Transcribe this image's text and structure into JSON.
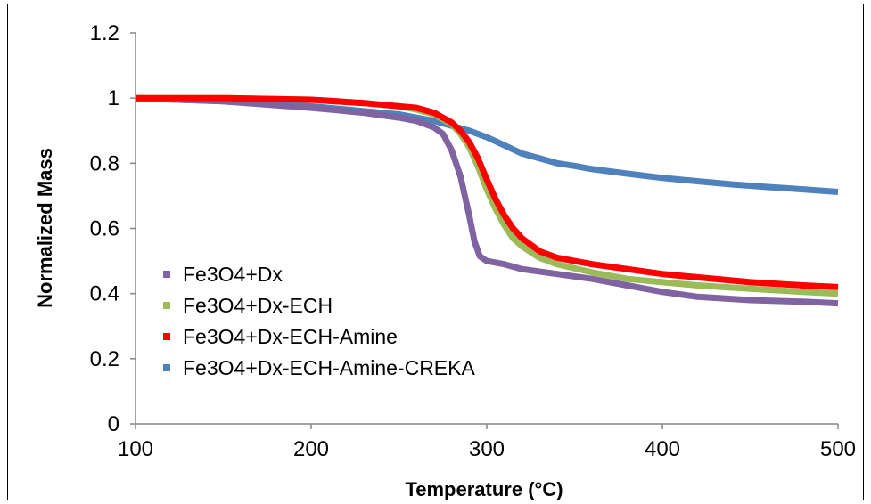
{
  "chart_data": {
    "type": "line",
    "xlabel": "Temperature (°C)",
    "ylabel": "Normalized Mass",
    "xlim": [
      100,
      500
    ],
    "ylim": [
      0,
      1.2
    ],
    "xticks": [
      100,
      200,
      300,
      400,
      500
    ],
    "yticks": [
      0,
      0.2,
      0.4,
      0.6,
      0.8,
      1,
      1.2
    ],
    "xtick_labels": [
      "100",
      "200",
      "300",
      "400",
      "500"
    ],
    "ytick_labels": [
      "0",
      "0.2",
      "0.4",
      "0.6",
      "0.8",
      "1",
      "1.2"
    ],
    "grid": false,
    "legend_position": "bottom-left",
    "series": [
      {
        "name": "Fe3O4+Dx",
        "color": "#8064A2",
        "x": [
          100,
          150,
          200,
          230,
          250,
          260,
          270,
          275,
          280,
          285,
          290,
          293,
          296,
          300,
          310,
          320,
          340,
          360,
          380,
          400,
          420,
          450,
          480,
          500
        ],
        "y": [
          1.0,
          0.99,
          0.97,
          0.955,
          0.94,
          0.93,
          0.91,
          0.89,
          0.84,
          0.76,
          0.64,
          0.56,
          0.515,
          0.5,
          0.49,
          0.475,
          0.46,
          0.445,
          0.425,
          0.405,
          0.39,
          0.38,
          0.375,
          0.37
        ]
      },
      {
        "name": "Fe3O4+Dx-ECH",
        "color": "#9BBB59",
        "x": [
          100,
          150,
          200,
          230,
          250,
          260,
          270,
          280,
          285,
          290,
          295,
          300,
          305,
          310,
          315,
          320,
          330,
          340,
          360,
          380,
          400,
          420,
          450,
          480,
          500
        ],
        "y": [
          1.0,
          1.0,
          0.995,
          0.985,
          0.975,
          0.965,
          0.95,
          0.92,
          0.89,
          0.85,
          0.79,
          0.72,
          0.66,
          0.61,
          0.57,
          0.545,
          0.51,
          0.49,
          0.465,
          0.445,
          0.435,
          0.425,
          0.415,
          0.405,
          0.4
        ]
      },
      {
        "name": "Fe3O4+Dx-ECH-Amine",
        "color": "#FF0000",
        "x": [
          100,
          150,
          200,
          230,
          250,
          260,
          270,
          280,
          285,
          290,
          295,
          300,
          305,
          310,
          315,
          320,
          330,
          340,
          360,
          380,
          400,
          420,
          450,
          480,
          500
        ],
        "y": [
          1.0,
          1.0,
          0.995,
          0.985,
          0.975,
          0.97,
          0.955,
          0.925,
          0.9,
          0.865,
          0.815,
          0.75,
          0.69,
          0.64,
          0.6,
          0.57,
          0.53,
          0.51,
          0.49,
          0.475,
          0.46,
          0.45,
          0.435,
          0.425,
          0.42
        ]
      },
      {
        "name": "Fe3O4+Dx-ECH-Amine-CREKA",
        "color": "#4F81BD",
        "x": [
          100,
          150,
          200,
          230,
          250,
          270,
          280,
          290,
          300,
          310,
          320,
          330,
          340,
          350,
          360,
          380,
          400,
          420,
          440,
          460,
          480,
          500
        ],
        "y": [
          1.0,
          0.99,
          0.975,
          0.96,
          0.95,
          0.93,
          0.915,
          0.9,
          0.88,
          0.855,
          0.83,
          0.815,
          0.8,
          0.792,
          0.782,
          0.768,
          0.755,
          0.745,
          0.735,
          0.727,
          0.72,
          0.712
        ]
      }
    ]
  }
}
